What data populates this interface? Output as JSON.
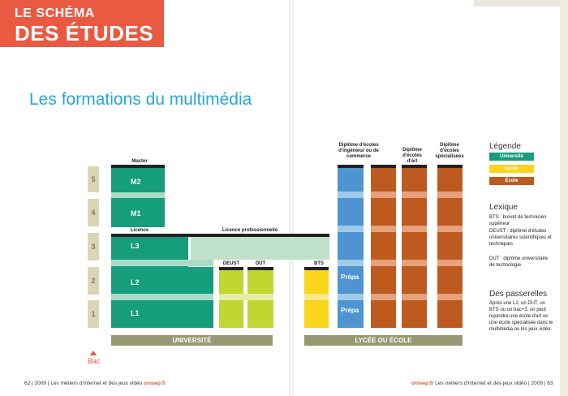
{
  "banner": {
    "line1": "LE SCHÉMA",
    "line2": "DES ÉTUDES"
  },
  "title": "Les formations du multimédia",
  "levels": [
    "5",
    "4",
    "3",
    "2",
    "1"
  ],
  "labels": {
    "master": "Master",
    "licence": "Licence",
    "licence_pro": "Licence professionnelle",
    "deust": "DEUST",
    "dut": "DUT",
    "bts": "BTS",
    "dip_ingenieur": "Diplôme d'écoles d'ingénieur ou de commerce",
    "dip_art": "Diplôme d'écoles d'art",
    "dip_spec": "Diplôme d'écoles spécialisées",
    "m2": "M2",
    "m1": "M1",
    "l3": "L3",
    "l2": "L2",
    "l1": "L1",
    "prepa": "Prépa",
    "universite": "UNIVERSITÉ",
    "lycee": "LYCÉE OU ÉCOLE",
    "bac": "Bac"
  },
  "legend": {
    "title": "Légende",
    "items": [
      "Université",
      "Lycée",
      "École"
    ],
    "colors": [
      "#159d7c",
      "#f9d51b",
      "#bd5a20"
    ]
  },
  "lexique": {
    "title": "Lexique",
    "bts": "BTS : brevet de technicien supérieur",
    "deust": "DEUST : diplôme d'études universitaires scientifiques et techniques",
    "dut": "DUT : diplôme universitaire de technologie"
  },
  "passerelles": {
    "title": "Des passerelles",
    "text": "Après une L2, un DUT, un BTS ou un bac+3, on peut rejoindre une école d'art ou une école spécialisée dans le multimédia ou les jeux vidéo."
  },
  "footer": {
    "left_num": "62",
    "left_year": "2009",
    "left_text": "Les métiers d'Internet et des jeux vidéo",
    "brand": "onisep.fr",
    "right_year": "2009",
    "right_num": "63"
  }
}
